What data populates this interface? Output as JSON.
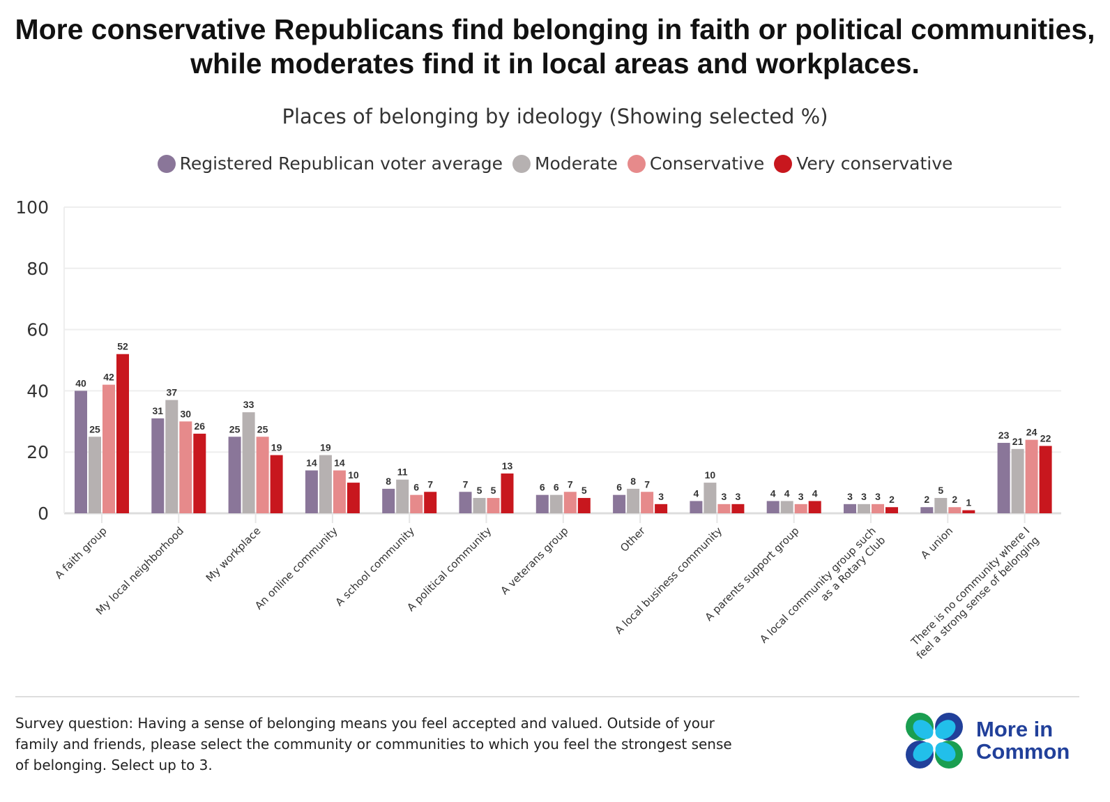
{
  "title": "More conservative Republicans find belonging in faith or political communities, while moderates find it in local areas and workplaces.",
  "chart_data": {
    "type": "bar",
    "subtitle": "Places of belonging by ideology (Showing selected %)",
    "categories": [
      "A faith group",
      "My local neighborhood",
      "My workplace",
      "An online community",
      "A school community",
      "A political community",
      "A veterans group",
      "Other",
      "A local business community",
      "A parents support group",
      "A local community group such as a Rotary Club",
      "A union",
      "There is no community where I feel a strong sense of belonging"
    ],
    "category_lines": [
      [
        "A faith group"
      ],
      [
        "My local neighborhood"
      ],
      [
        "My workplace"
      ],
      [
        "An online community"
      ],
      [
        "A school community"
      ],
      [
        "A political community"
      ],
      [
        "A veterans group"
      ],
      [
        "Other"
      ],
      [
        "A local business community"
      ],
      [
        "A parents support group"
      ],
      [
        "A local community group such",
        "as a Rotary Club"
      ],
      [
        "A union"
      ],
      [
        "There is no community where I",
        "feel a strong sense of belonging"
      ]
    ],
    "series": [
      {
        "name": "Registered Republican voter average",
        "color": "#8a7699",
        "values": [
          40,
          31,
          25,
          14,
          8,
          7,
          6,
          6,
          4,
          4,
          3,
          2,
          23
        ]
      },
      {
        "name": "Moderate",
        "color": "#b6b1b1",
        "values": [
          25,
          37,
          33,
          19,
          11,
          5,
          6,
          8,
          10,
          4,
          3,
          5,
          21
        ]
      },
      {
        "name": "Conservative",
        "color": "#e68a8b",
        "values": [
          42,
          30,
          25,
          14,
          6,
          5,
          7,
          7,
          3,
          3,
          3,
          2,
          24
        ]
      },
      {
        "name": "Very conservative",
        "color": "#c8171e",
        "values": [
          52,
          26,
          19,
          10,
          7,
          13,
          5,
          3,
          3,
          4,
          2,
          1,
          22
        ]
      }
    ],
    "ylim": [
      0,
      100
    ],
    "yticks": [
      0,
      20,
      40,
      60,
      80,
      100
    ],
    "grid": true,
    "legend_position": "top-center",
    "data_labels": true
  },
  "footnote": "Survey question: Having a sense of belonging means you feel accepted and valued. Outside of your family and friends, please select the community or communities to which you feel the strongest sense of belonging. Select up to 3.",
  "logo": {
    "line1": "More in",
    "line2": "Common",
    "colors": [
      "#1a9e50",
      "#21409a",
      "#22bfea"
    ]
  }
}
